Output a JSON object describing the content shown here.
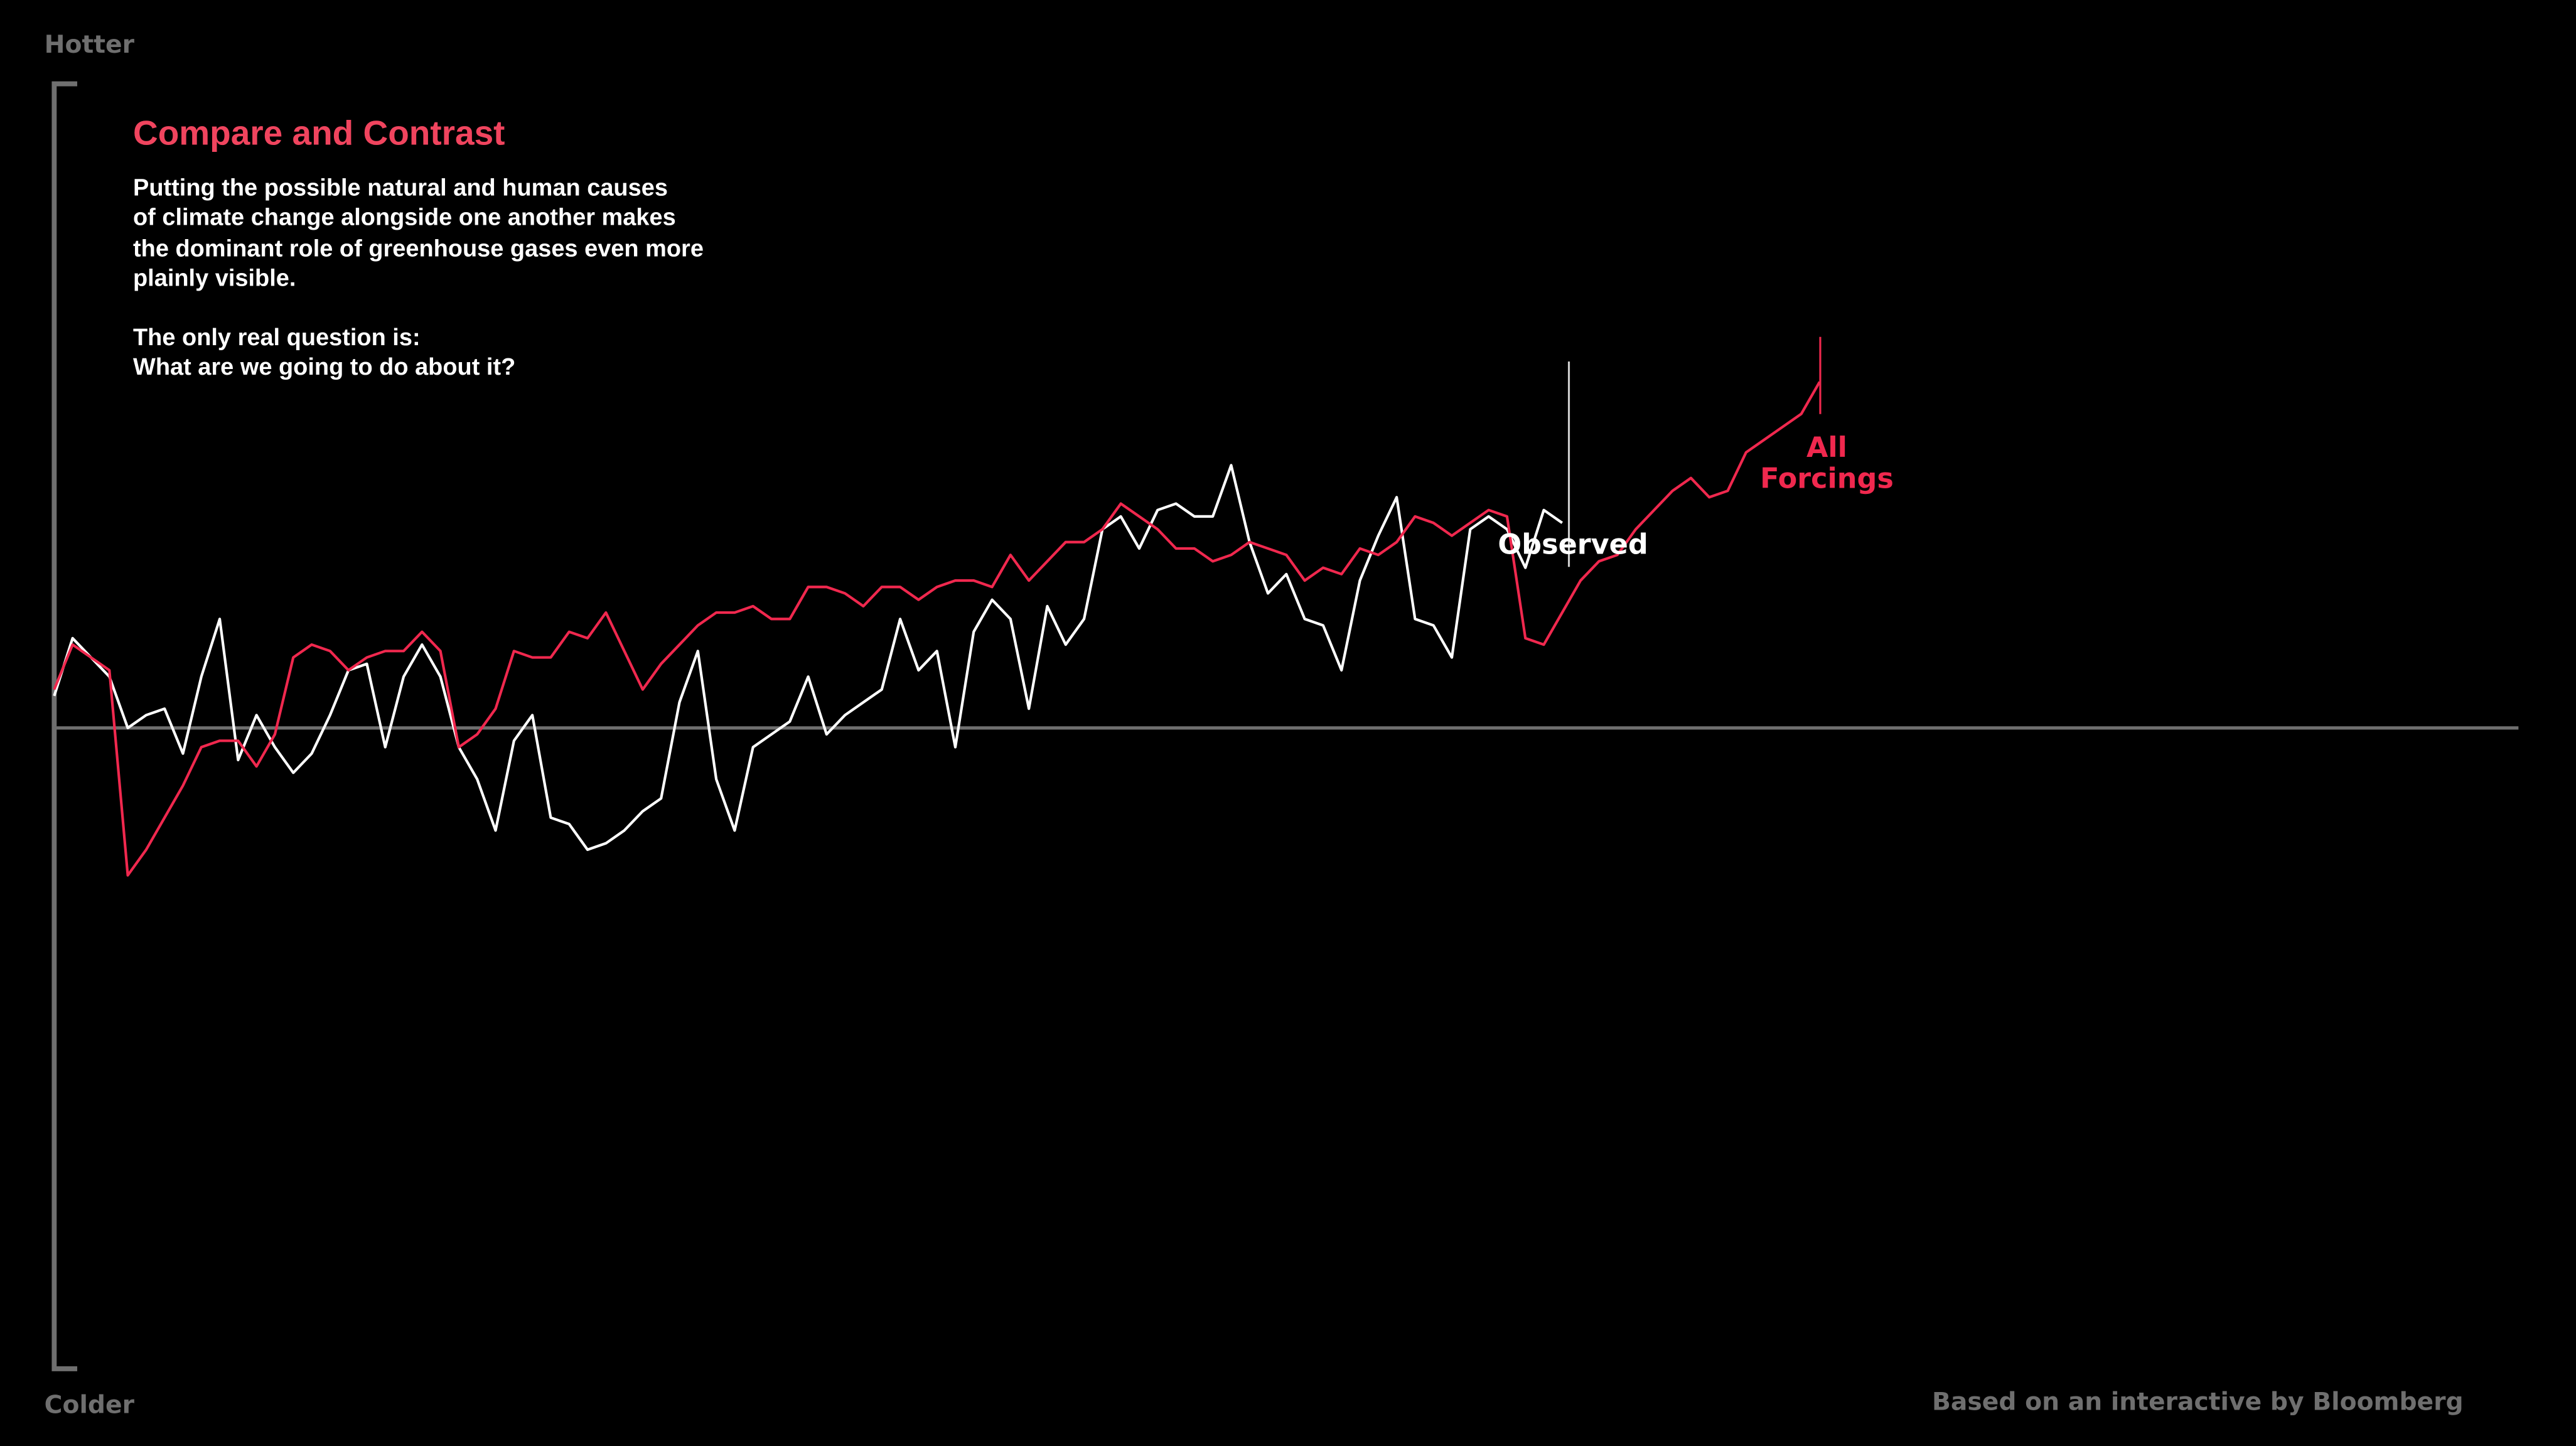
{
  "chart_data": {
    "type": "line",
    "title": "Compare and Contrast",
    "paragraph": [
      "Putting the possible natural and human causes",
      "of climate change alongside one another makes",
      "the dominant role of greenhouse gases even more",
      "plainly visible."
    ],
    "question": [
      "The only real question is:",
      "What are we going to do about it?"
    ],
    "y_top_label": "Hotter",
    "y_bottom_label": "Colder",
    "source": "Based on an interactive by Bloomberg",
    "xlim": [
      0,
      134
    ],
    "ylim": [
      -1,
      1
    ],
    "x": [
      0,
      1,
      2,
      3,
      4,
      5,
      6,
      7,
      8,
      9,
      10,
      11,
      12,
      13,
      14,
      15,
      16,
      17,
      18,
      19,
      20,
      21,
      22,
      23,
      24,
      25,
      26,
      27,
      28,
      29,
      30,
      31,
      32,
      33,
      34,
      35,
      36,
      37,
      38,
      39,
      40,
      41,
      42,
      43,
      44,
      45,
      46,
      47,
      48,
      49,
      50,
      51,
      52,
      53,
      54,
      55,
      56,
      57,
      58,
      59,
      60,
      61,
      62,
      63,
      64,
      65,
      66,
      67,
      68,
      69,
      70,
      71,
      72,
      73,
      74,
      75,
      76,
      77,
      78,
      79,
      80,
      81,
      82,
      83,
      84,
      85,
      86,
      87,
      88,
      89,
      90,
      91,
      92,
      93,
      94,
      95,
      96
    ],
    "series": [
      {
        "name": "Observed",
        "color": "#ffffff",
        "values": [
          0.05,
          0.14,
          0.11,
          0.08,
          0.0,
          0.02,
          0.03,
          -0.04,
          0.08,
          0.17,
          -0.05,
          0.02,
          -0.03,
          -0.07,
          -0.04,
          0.02,
          0.09,
          0.1,
          -0.03,
          0.08,
          0.13,
          0.08,
          -0.03,
          -0.08,
          -0.16,
          -0.02,
          0.02,
          -0.14,
          -0.15,
          -0.19,
          -0.18,
          -0.16,
          -0.13,
          -0.11,
          0.04,
          0.12,
          -0.08,
          -0.16,
          -0.03,
          -0.01,
          0.01,
          0.08,
          -0.01,
          0.02,
          0.04,
          0.06,
          0.17,
          0.09,
          0.12,
          -0.03,
          0.15,
          0.2,
          0.17,
          0.03,
          0.19,
          0.13,
          0.17,
          0.31,
          0.33,
          0.28,
          0.34,
          0.35,
          0.33,
          0.33,
          0.41,
          0.29,
          0.21,
          0.24,
          0.17,
          0.16,
          0.09,
          0.23,
          0.3,
          0.36,
          0.17,
          0.16,
          0.11,
          0.31,
          0.33,
          0.31,
          0.25,
          0.34,
          0.32,
          null,
          null,
          null,
          null,
          null,
          null,
          null,
          null,
          null,
          null,
          null,
          null,
          null,
          null
        ]
      },
      {
        "name": "All Forcings",
        "color": "#f0284e",
        "values": [
          0.06,
          0.13,
          0.11,
          0.09,
          -0.23,
          -0.19,
          -0.14,
          -0.09,
          -0.03,
          -0.02,
          -0.02,
          -0.06,
          -0.01,
          0.11,
          0.13,
          0.12,
          0.09,
          0.11,
          0.12,
          0.12,
          0.15,
          0.12,
          -0.03,
          -0.01,
          0.03,
          0.12,
          0.11,
          0.11,
          0.15,
          0.14,
          0.18,
          0.12,
          0.06,
          0.1,
          0.13,
          0.16,
          0.18,
          0.18,
          0.19,
          0.17,
          0.17,
          0.22,
          0.22,
          0.21,
          0.19,
          0.22,
          0.22,
          0.2,
          0.22,
          0.23,
          0.23,
          0.22,
          0.27,
          0.23,
          0.26,
          0.29,
          0.29,
          0.31,
          0.35,
          0.33,
          0.31,
          0.28,
          0.28,
          0.26,
          0.27,
          0.29,
          0.28,
          0.27,
          0.23,
          0.25,
          0.24,
          0.28,
          0.27,
          0.29,
          0.33,
          0.32,
          0.3,
          0.32,
          0.34,
          0.33,
          0.14,
          0.13,
          0.18,
          0.23,
          0.26,
          0.27,
          0.31,
          0.34,
          0.37,
          0.39,
          0.36,
          0.37,
          0.43,
          0.45,
          0.47,
          0.49,
          0.54
        ]
      }
    ]
  }
}
